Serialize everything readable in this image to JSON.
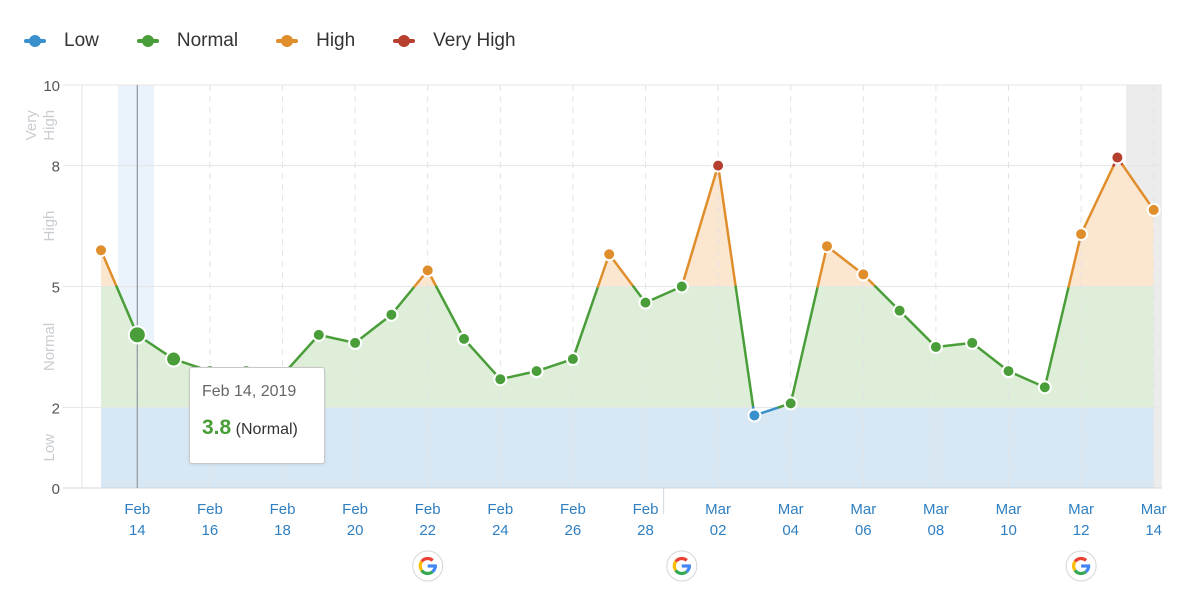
{
  "legend": [
    {
      "label": "Low",
      "color": "#3a8fcd"
    },
    {
      "label": "Normal",
      "color": "#4a9e3a"
    },
    {
      "label": "High",
      "color": "#e08e2b"
    },
    {
      "label": "Very High",
      "color": "#b63f2e"
    }
  ],
  "tooltip": {
    "date": "Feb 14, 2019",
    "value": "3.8",
    "category": "(Normal)"
  },
  "chart_data": {
    "type": "line",
    "ylim": [
      0,
      10
    ],
    "y_ticks": [
      "0",
      "2",
      "5",
      "8",
      "10"
    ],
    "y_bands": [
      {
        "label": "Low",
        "range": [
          0,
          2
        ],
        "color": "#d7e7f4"
      },
      {
        "label": "Normal",
        "range": [
          2,
          5
        ],
        "color": "#dfeed9"
      },
      {
        "label": "High",
        "range": [
          5,
          8
        ],
        "color": "#fbe6d0"
      },
      {
        "label": "Very High",
        "range": [
          8,
          10
        ],
        "color": "#f5d6d2"
      }
    ],
    "x_tick_labels": [
      {
        "month": "Feb",
        "day": "14"
      },
      {
        "month": "Feb",
        "day": "16"
      },
      {
        "month": "Feb",
        "day": "18"
      },
      {
        "month": "Feb",
        "day": "20"
      },
      {
        "month": "Feb",
        "day": "22"
      },
      {
        "month": "Feb",
        "day": "24"
      },
      {
        "month": "Feb",
        "day": "26"
      },
      {
        "month": "Feb",
        "day": "28"
      },
      {
        "month": "Mar",
        "day": "02"
      },
      {
        "month": "Mar",
        "day": "04"
      },
      {
        "month": "Mar",
        "day": "06"
      },
      {
        "month": "Mar",
        "day": "08"
      },
      {
        "month": "Mar",
        "day": "10"
      },
      {
        "month": "Mar",
        "day": "12"
      },
      {
        "month": "Mar",
        "day": "14"
      }
    ],
    "series": [
      {
        "dates": [
          "Feb 13",
          "Feb 14",
          "Feb 15",
          "Feb 16",
          "Feb 17",
          "Feb 18",
          "Feb 19",
          "Feb 20",
          "Feb 21",
          "Feb 22",
          "Feb 23",
          "Feb 24",
          "Feb 25",
          "Feb 26",
          "Feb 27",
          "Feb 28",
          "Mar 01",
          "Mar 02",
          "Mar 03",
          "Mar 04",
          "Mar 05",
          "Mar 06",
          "Mar 07",
          "Mar 08",
          "Mar 09",
          "Mar 10",
          "Mar 11",
          "Mar 12",
          "Mar 13",
          "Mar 14"
        ],
        "values": [
          5.9,
          3.8,
          3.2,
          2.9,
          2.9,
          2.8,
          3.8,
          3.6,
          4.3,
          5.4,
          3.7,
          2.7,
          2.9,
          3.2,
          5.8,
          4.6,
          5.0,
          8.0,
          1.8,
          2.1,
          6.0,
          5.3,
          4.4,
          3.5,
          3.6,
          2.9,
          2.5,
          6.3,
          8.2,
          6.9
        ]
      }
    ],
    "highlighted_point": {
      "date": "Feb 14",
      "value": 3.8
    },
    "annotation_markers": [
      "Feb 22",
      "Mar 01",
      "Mar 12"
    ]
  }
}
